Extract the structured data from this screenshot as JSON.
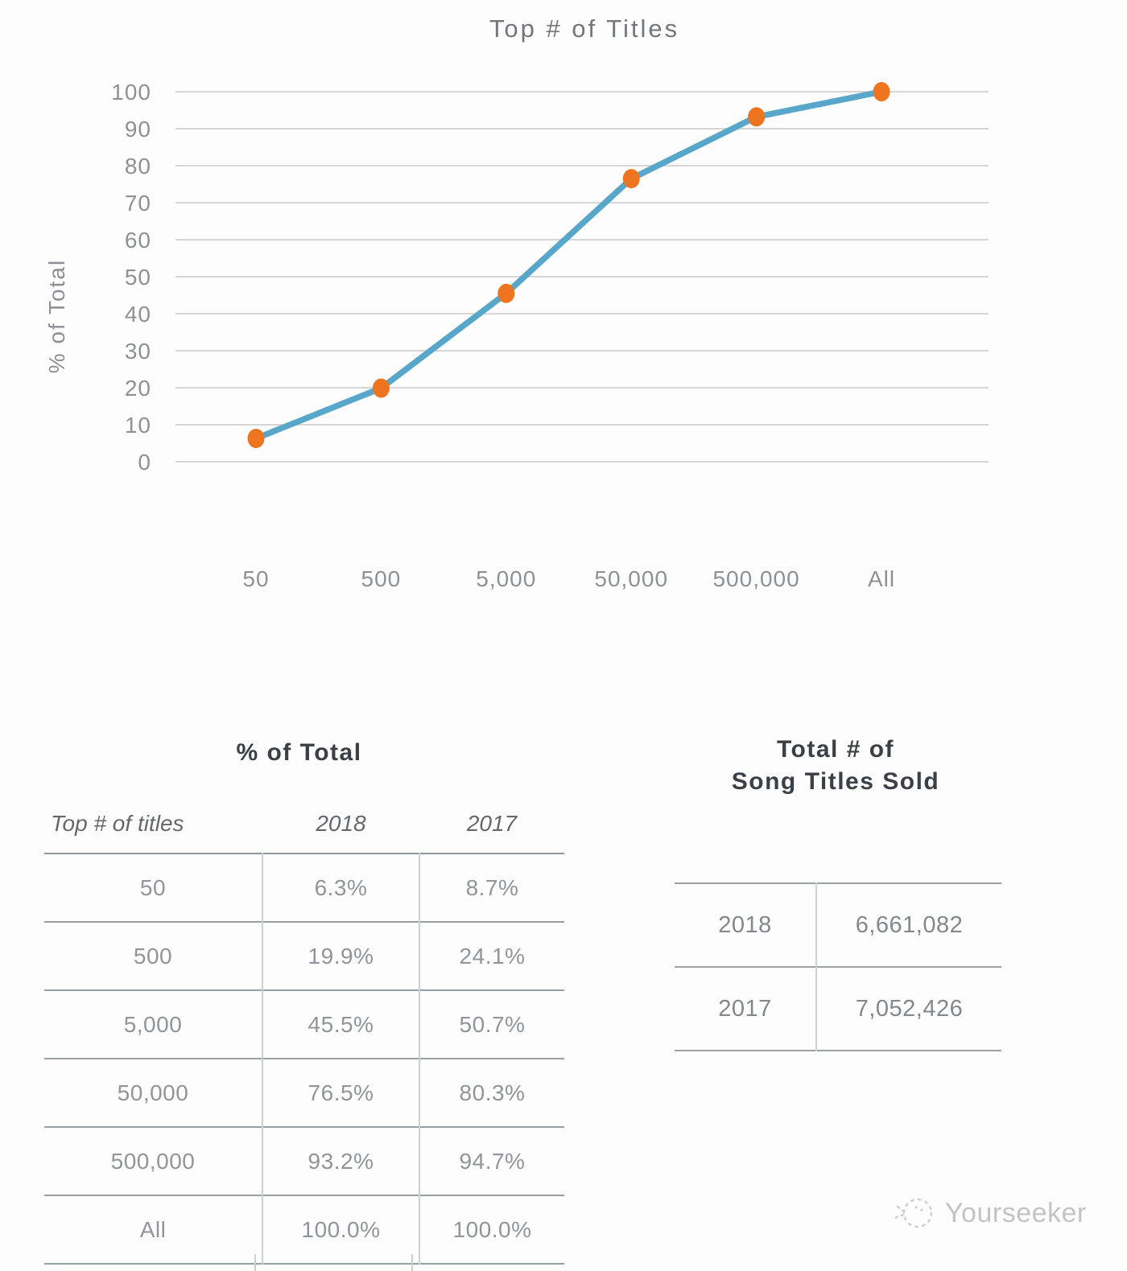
{
  "chart_data": {
    "type": "line",
    "title": "Top # of Titles",
    "xlabel": "",
    "ylabel": "% of Total",
    "categories": [
      "50",
      "500",
      "5,000",
      "50,000",
      "500,000",
      "All"
    ],
    "series": [
      {
        "name": "2018",
        "values": [
          6.3,
          19.9,
          45.5,
          76.5,
          93.2,
          100.0
        ]
      }
    ],
    "ylim": [
      0,
      100
    ],
    "ytick_step": 10,
    "grid": true,
    "legend_position": "none",
    "line_color": "#58a7ca",
    "marker_color": "#ee7420",
    "grid_color": "#c9c9c9",
    "tick_color": "#8d9196",
    "title_color": "#72777c"
  },
  "percent_table": {
    "title": "% of Total",
    "columns": [
      "Top # of titles",
      "2018",
      "2017"
    ],
    "rows": [
      [
        "50",
        "6.3%",
        "8.7%"
      ],
      [
        "500",
        "19.9%",
        "24.1%"
      ],
      [
        "5,000",
        "45.5%",
        "50.7%"
      ],
      [
        "50,000",
        "76.5%",
        "80.3%"
      ],
      [
        "500,000",
        "93.2%",
        "94.7%"
      ],
      [
        "All",
        "100.0%",
        "100.0%"
      ]
    ]
  },
  "totals_table": {
    "title_line1": "Total # of",
    "title_line2": "Song Titles Sold",
    "rows": [
      [
        "2018",
        "6,661,082"
      ],
      [
        "2017",
        "7,052,426"
      ]
    ]
  },
  "watermark": {
    "text": "Yourseeker",
    "icon": "dotted-circle-logo"
  }
}
